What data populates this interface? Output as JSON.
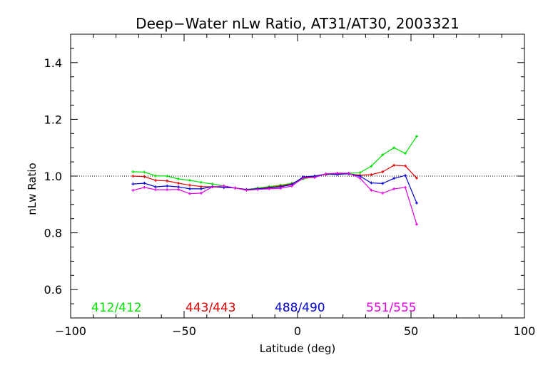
{
  "chart_data": {
    "type": "line",
    "title": "Deep−Water nLw Ratio, AT31/AT30, 2003321",
    "xlabel": "Latitude (deg)",
    "ylabel": "nLw Ratio",
    "xlim": [
      -100,
      100
    ],
    "ylim": [
      0.5,
      1.5
    ],
    "x_ticks": [
      -100,
      -50,
      0,
      50,
      100
    ],
    "x_tick_labels": [
      "−100",
      "−50",
      "0",
      "50",
      "100"
    ],
    "y_ticks": [
      0.6,
      0.8,
      1.0,
      1.2,
      1.4
    ],
    "y_tick_labels": [
      "0.6",
      "0.8",
      "1.0",
      "1.2",
      "1.4"
    ],
    "reference_line": 1.0,
    "grid": false,
    "legend_placement": "bottom",
    "x": [
      -72.5,
      -67.5,
      -62.5,
      -57.5,
      -52.5,
      -47.5,
      -42.5,
      -37.5,
      -32.5,
      -27.5,
      -22.5,
      -17.5,
      -12.5,
      -7.5,
      -2.5,
      2.5,
      7.5,
      12.5,
      17.5,
      22.5,
      27.5,
      32.5,
      37.5,
      42.5,
      47.5,
      52.5
    ],
    "series": [
      {
        "name": "412/412",
        "color": "#00e000",
        "values": [
          1.015,
          1.014,
          1.001,
          1.0,
          0.99,
          0.985,
          0.978,
          0.972,
          0.965,
          0.958,
          0.953,
          0.958,
          0.963,
          0.968,
          0.975,
          0.99,
          0.998,
          1.008,
          1.01,
          1.01,
          1.012,
          1.035,
          1.075,
          1.1,
          1.08,
          1.14
        ]
      },
      {
        "name": "443/443",
        "color": "#e00000",
        "values": [
          1.0,
          0.998,
          0.985,
          0.983,
          0.975,
          0.968,
          0.963,
          0.962,
          0.96,
          0.958,
          0.953,
          0.955,
          0.96,
          0.965,
          0.972,
          0.995,
          1.0,
          1.006,
          1.008,
          1.008,
          1.003,
          1.005,
          1.015,
          1.038,
          1.036,
          0.993
        ]
      },
      {
        "name": "488/490",
        "color": "#0000d0",
        "values": [
          0.972,
          0.975,
          0.962,
          0.965,
          0.962,
          0.955,
          0.955,
          0.963,
          0.96,
          0.958,
          0.952,
          0.955,
          0.958,
          0.962,
          0.97,
          0.997,
          1.0,
          1.007,
          1.006,
          1.008,
          1.0,
          0.976,
          0.974,
          0.992,
          1.002,
          0.905
        ]
      },
      {
        "name": "551/555",
        "color": "#e000e0",
        "values": [
          0.95,
          0.96,
          0.952,
          0.952,
          0.953,
          0.938,
          0.94,
          0.962,
          0.965,
          0.958,
          0.95,
          0.953,
          0.955,
          0.957,
          0.965,
          0.993,
          0.995,
          1.008,
          1.01,
          1.01,
          0.993,
          0.95,
          0.94,
          0.955,
          0.96,
          0.83
        ]
      }
    ]
  }
}
